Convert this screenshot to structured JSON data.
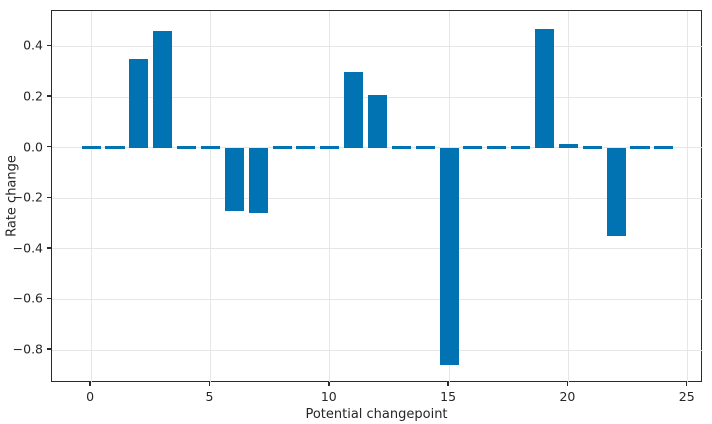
{
  "chart_data": {
    "type": "bar",
    "title": "",
    "xlabel": "Potential changepoint",
    "ylabel": "Rate change",
    "x": [
      0,
      1,
      2,
      3,
      4,
      5,
      6,
      7,
      8,
      9,
      10,
      11,
      12,
      13,
      14,
      15,
      16,
      17,
      18,
      19,
      20,
      21,
      22,
      23,
      24
    ],
    "values": [
      0,
      0,
      0.35,
      0.46,
      0,
      0,
      -0.25,
      -0.26,
      0,
      0,
      0,
      0.3,
      0.21,
      0,
      0,
      -0.86,
      0,
      0,
      0,
      0.47,
      0.015,
      0,
      -0.35,
      0,
      0
    ],
    "bar_width": 0.8,
    "bar_color": "#0173b2",
    "xlim": [
      -1.64,
      25.64
    ],
    "ylim": [
      -0.93,
      0.54
    ],
    "x_ticks": [
      {
        "value": 0,
        "label": "0"
      },
      {
        "value": 5,
        "label": "5"
      },
      {
        "value": 10,
        "label": "10"
      },
      {
        "value": 15,
        "label": "15"
      },
      {
        "value": 20,
        "label": "20"
      },
      {
        "value": 25,
        "label": "25"
      }
    ],
    "y_ticks": [
      {
        "value": 0.4,
        "label": "0.4"
      },
      {
        "value": 0.2,
        "label": "0.2"
      },
      {
        "value": 0.0,
        "label": "0.0"
      },
      {
        "value": -0.2,
        "label": "−0.2"
      },
      {
        "value": -0.4,
        "label": "−0.4"
      },
      {
        "value": -0.6,
        "label": "−0.6"
      },
      {
        "value": -0.8,
        "label": "−0.8"
      }
    ],
    "grid": true,
    "legend": "none",
    "colors": {
      "grid": "#e6e6e6",
      "spine": "#2a2a2a",
      "text": "#262626",
      "background": "#ffffff"
    }
  }
}
